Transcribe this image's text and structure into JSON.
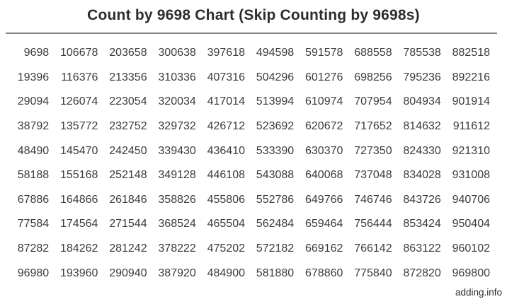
{
  "title": "Count by 9698 Chart (Skip Counting by 9698s)",
  "footer": {
    "watermark": "adding.info"
  },
  "colors": {
    "background": "#ffffff",
    "title_text": "#2d2d2d",
    "number_text": "#3b3b3b",
    "divider": "#838383"
  },
  "chart_data": {
    "type": "table",
    "title": "Count by 9698 Chart (Skip Counting by 9698s)",
    "step": 9698,
    "range": "9698 x 1 through 9698 x 100, arranged column-major top-to-bottom then left-to-right",
    "columns": 10,
    "rows_count": 10,
    "rows": [
      [
        9698,
        106678,
        203658,
        300638,
        397618,
        494598,
        591578,
        688558,
        785538,
        882518
      ],
      [
        19396,
        116376,
        213356,
        310336,
        407316,
        504296,
        601276,
        698256,
        795236,
        892216
      ],
      [
        29094,
        126074,
        223054,
        320034,
        417014,
        513994,
        610974,
        707954,
        804934,
        901914
      ],
      [
        38792,
        135772,
        232752,
        329732,
        426712,
        523692,
        620672,
        717652,
        814632,
        911612
      ],
      [
        48490,
        145470,
        242450,
        339430,
        436410,
        533390,
        630370,
        727350,
        824330,
        921310
      ],
      [
        58188,
        155168,
        252148,
        349128,
        446108,
        543088,
        640068,
        737048,
        834028,
        931008
      ],
      [
        67886,
        164866,
        261846,
        358826,
        455806,
        552786,
        649766,
        746746,
        843726,
        940706
      ],
      [
        77584,
        174564,
        271544,
        368524,
        465504,
        562484,
        659464,
        756444,
        853424,
        950404
      ],
      [
        87282,
        184262,
        281242,
        378222,
        475202,
        572182,
        669162,
        766142,
        863122,
        960102
      ],
      [
        96980,
        193960,
        290940,
        387920,
        484900,
        581880,
        678860,
        775840,
        872820,
        969800
      ]
    ]
  }
}
